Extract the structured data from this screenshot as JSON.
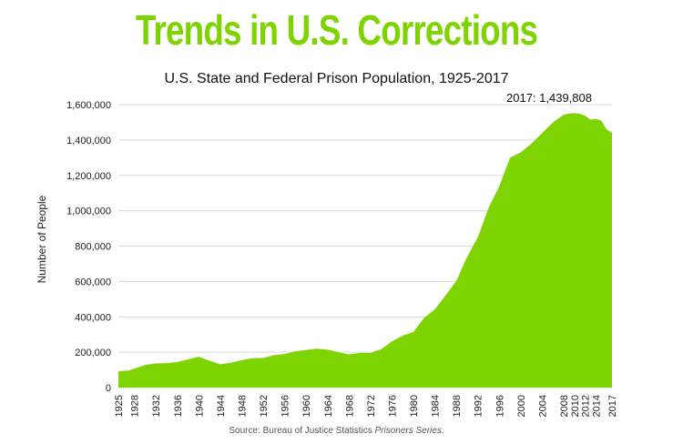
{
  "header": {
    "title": "Trends in U.S. Corrections"
  },
  "chart_data": {
    "type": "area",
    "title": "U.S. State and Federal Prison Population, 1925-2017",
    "xlabel": "",
    "ylabel": "Number of People",
    "ylim": [
      0,
      1600000
    ],
    "yticks": [
      0,
      200000,
      400000,
      600000,
      800000,
      1000000,
      1200000,
      1400000,
      1600000
    ],
    "ytick_labels": [
      "0",
      "200,000",
      "400,000",
      "600,000",
      "800,000",
      "1,000,000",
      "1,200,000",
      "1,400,000",
      "1,600,000"
    ],
    "xlim": [
      1925,
      2017
    ],
    "xticks": [
      1925,
      1928,
      1932,
      1936,
      1940,
      1944,
      1948,
      1952,
      1956,
      1960,
      1964,
      1968,
      1972,
      1976,
      1980,
      1984,
      1988,
      1992,
      1996,
      2000,
      2004,
      2008,
      2010,
      2012,
      2014,
      2017
    ],
    "fill_color": "#7ed400",
    "grid": true,
    "series": [
      {
        "name": "Prison Population",
        "x": [
          1925,
          1927,
          1928,
          1930,
          1932,
          1934,
          1936,
          1938,
          1940,
          1942,
          1944,
          1946,
          1948,
          1950,
          1952,
          1954,
          1956,
          1958,
          1960,
          1962,
          1964,
          1966,
          1968,
          1970,
          1972,
          1974,
          1976,
          1978,
          1980,
          1982,
          1984,
          1986,
          1988,
          1990,
          1992,
          1994,
          1996,
          1998,
          2000,
          2002,
          2004,
          2006,
          2008,
          2009,
          2010,
          2011,
          2012,
          2013,
          2014,
          2015,
          2016,
          2017
        ],
        "values": [
          91669,
          97000,
          108000,
          128000,
          137000,
          138000,
          145000,
          160000,
          174000,
          152000,
          132000,
          141000,
          155000,
          166000,
          168000,
          183000,
          190000,
          205000,
          213000,
          220000,
          215000,
          200000,
          188000,
          196000,
          196000,
          218000,
          262000,
          294000,
          315000,
          395000,
          443000,
          522000,
          603000,
          739000,
          850000,
          1016000,
          1138000,
          1300000,
          1330000,
          1380000,
          1440000,
          1500000,
          1543000,
          1550000,
          1552000,
          1548000,
          1537000,
          1515000,
          1520000,
          1510000,
          1460000,
          1439808
        ]
      }
    ],
    "annotation": "2017: 1,439,808",
    "source_label": "Source",
    "source_text": ": Bureau of Justice Statistics ",
    "source_italic": "Prisoners Series."
  }
}
